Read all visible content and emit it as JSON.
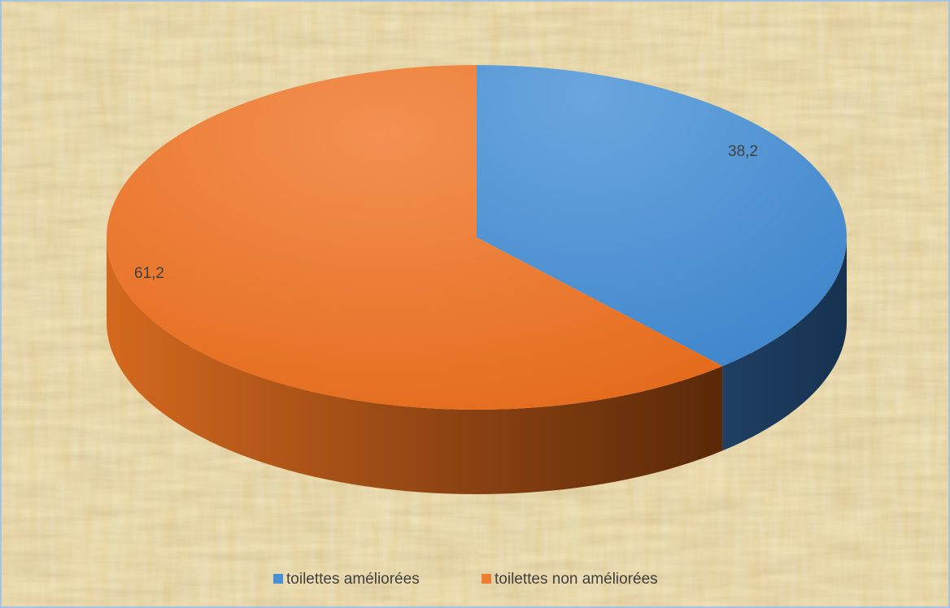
{
  "chart_data": {
    "type": "pie",
    "style": "3d",
    "categories": [
      "toilettes améliorées",
      "toilettes non améliorées"
    ],
    "values": [
      38.2,
      61.2
    ],
    "data_labels": [
      "38,2",
      "61,2"
    ],
    "colors": [
      "#4a8fd4",
      "#ed7d31"
    ],
    "title": "",
    "legend_position": "bottom"
  },
  "legend": {
    "items": [
      {
        "label": "toilettes améliorées",
        "color": "#4a8fd4"
      },
      {
        "label": "toilettes non améliorées",
        "color": "#ed7d31"
      }
    ]
  },
  "colors": {
    "background": "#ead9a8",
    "border": "#a8c4de",
    "label_text": "#404040"
  }
}
